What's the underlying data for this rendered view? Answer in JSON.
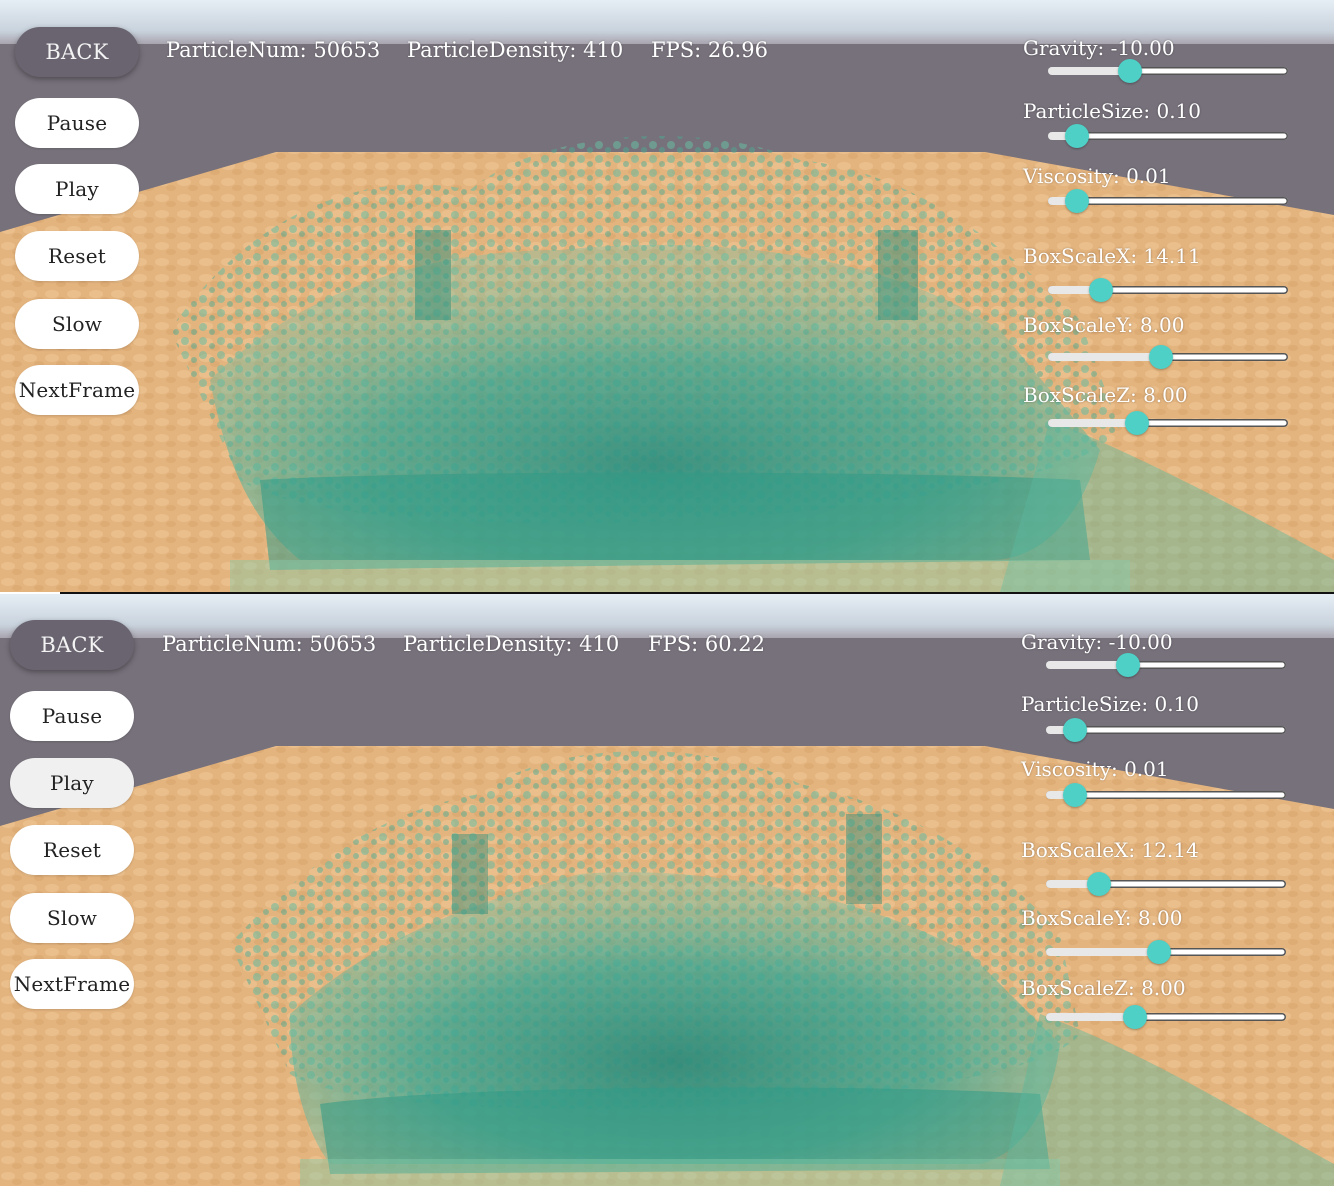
{
  "colors": {
    "backdrop": "#77717b",
    "floor": "#e3b37e",
    "water": "#2f9e8c",
    "slider_knob": "#4fd0c6"
  },
  "panels": [
    {
      "stats": {
        "particle_num": "ParticleNum: 50653",
        "particle_density": "ParticleDensity: 410",
        "fps": "FPS: 26.96"
      },
      "buttons": {
        "back": "BACK",
        "pause": "Pause",
        "play": "Play",
        "reset": "Reset",
        "slow": "Slow",
        "next_frame": "NextFrame"
      },
      "sliders": [
        {
          "label": "Gravity: -10.00",
          "level": 0.34
        },
        {
          "label": "ParticleSize: 0.10",
          "level": 0.12
        },
        {
          "label": "Viscosity: 0.01",
          "level": 0.12
        },
        {
          "label": "BoxScaleX: 14.11",
          "level": 0.22
        },
        {
          "label": "BoxScaleY: 8.00",
          "level": 0.47
        },
        {
          "label": "BoxScaleZ: 8.00",
          "level": 0.37
        }
      ]
    },
    {
      "stats": {
        "particle_num": "ParticleNum: 50653",
        "particle_density": "ParticleDensity: 410",
        "fps": "FPS: 60.22"
      },
      "buttons": {
        "back": "BACK",
        "pause": "Pause",
        "play": "Play",
        "reset": "Reset",
        "slow": "Slow",
        "next_frame": "NextFrame"
      },
      "sliders": [
        {
          "label": "Gravity: -10.00",
          "level": 0.34
        },
        {
          "label": "ParticleSize: 0.10",
          "level": 0.12
        },
        {
          "label": "Viscosity: 0.01",
          "level": 0.12
        },
        {
          "label": "BoxScaleX: 12.14",
          "level": 0.22
        },
        {
          "label": "BoxScaleY: 8.00",
          "level": 0.47
        },
        {
          "label": "BoxScaleZ: 8.00",
          "level": 0.37
        }
      ]
    }
  ]
}
